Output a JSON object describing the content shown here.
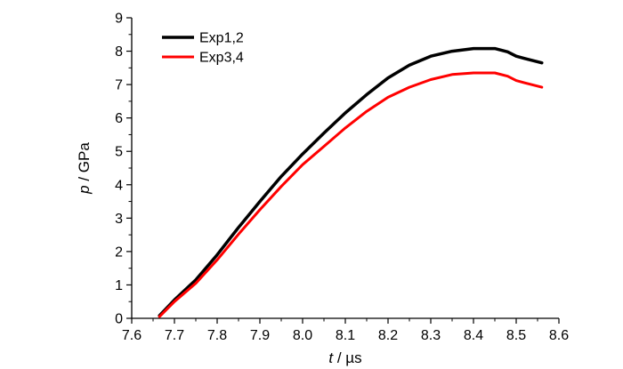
{
  "chart_data": {
    "type": "line",
    "xlabel_var": "t",
    "xlabel_unit": " / µs",
    "ylabel_var": "p",
    "ylabel_unit": " / GPa",
    "xlim": [
      7.6,
      8.6
    ],
    "ylim": [
      0,
      9
    ],
    "x_ticks": [
      "7.6",
      "7.7",
      "7.8",
      "7.9",
      "8.0",
      "8.1",
      "8.2",
      "8.3",
      "8.4",
      "8.5",
      "8.6"
    ],
    "y_ticks": [
      "0",
      "1",
      "2",
      "3",
      "4",
      "5",
      "6",
      "7",
      "8",
      "9"
    ],
    "grid": false,
    "legend_position": "top-left",
    "series": [
      {
        "name": "Exp1,2",
        "color": "#000000",
        "x": [
          7.665,
          7.7,
          7.75,
          7.8,
          7.85,
          7.9,
          7.95,
          8.0,
          8.05,
          8.1,
          8.15,
          8.2,
          8.25,
          8.3,
          8.35,
          8.4,
          8.45,
          8.48,
          8.5,
          8.52,
          8.56
        ],
        "y": [
          0.08,
          0.55,
          1.15,
          1.9,
          2.72,
          3.5,
          4.25,
          4.92,
          5.55,
          6.15,
          6.7,
          7.2,
          7.58,
          7.85,
          8.0,
          8.08,
          8.08,
          7.98,
          7.85,
          7.78,
          7.65
        ]
      },
      {
        "name": "Exp3,4",
        "color": "#ff0000",
        "x": [
          7.665,
          7.7,
          7.75,
          7.8,
          7.85,
          7.9,
          7.95,
          8.0,
          8.05,
          8.1,
          8.15,
          8.2,
          8.25,
          8.3,
          8.35,
          8.4,
          8.45,
          8.48,
          8.5,
          8.52,
          8.56
        ],
        "y": [
          0.05,
          0.5,
          1.05,
          1.75,
          2.52,
          3.25,
          3.95,
          4.6,
          5.15,
          5.7,
          6.2,
          6.62,
          6.92,
          7.15,
          7.3,
          7.35,
          7.35,
          7.25,
          7.12,
          7.05,
          6.92
        ]
      }
    ]
  }
}
